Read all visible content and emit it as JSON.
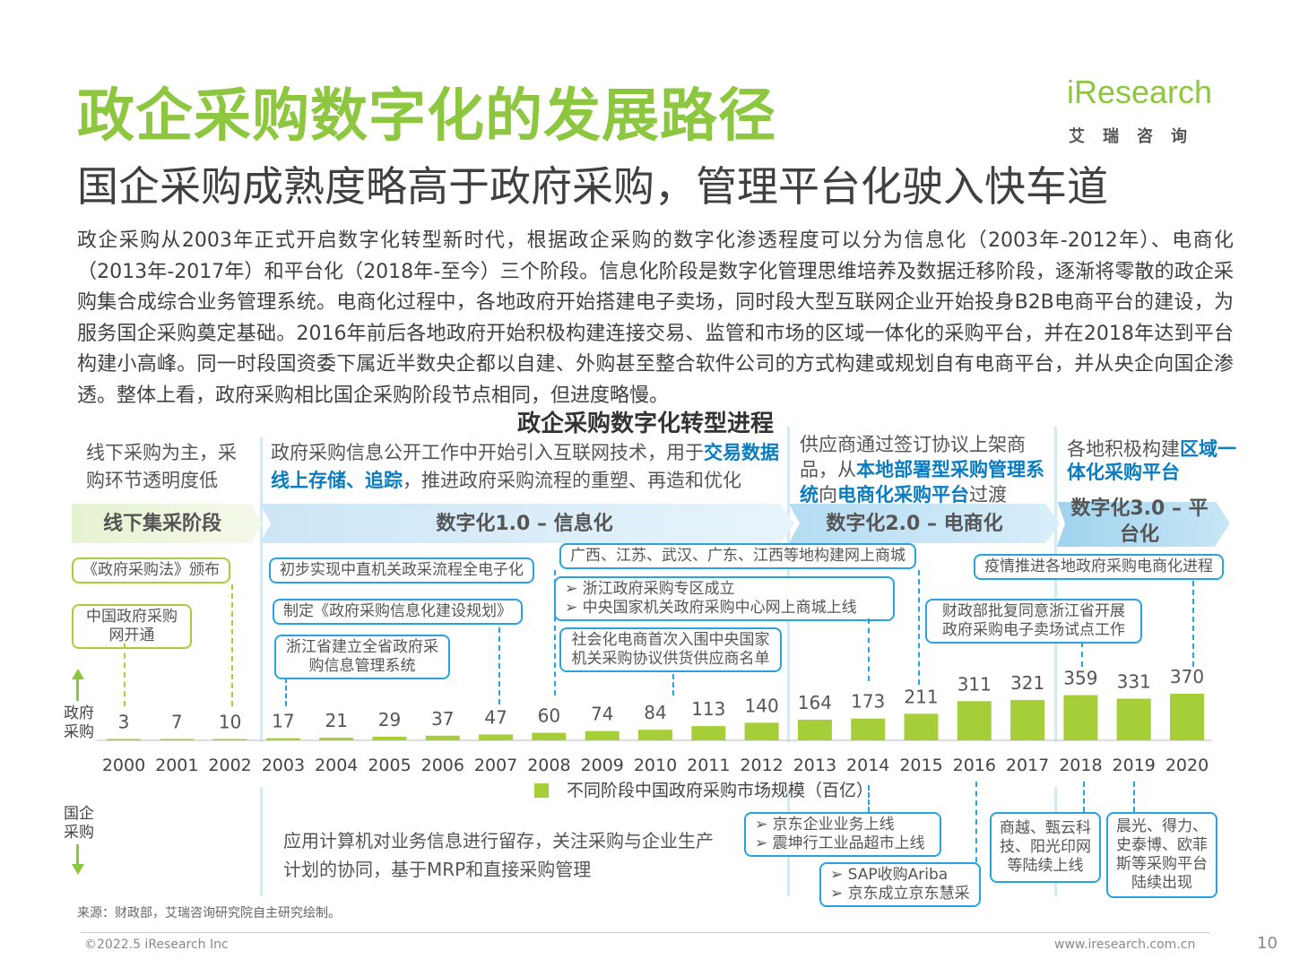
{
  "header": {
    "title": "政企采购数字化的发展路径",
    "subtitle": "国企采购成熟度略高于政府采购，管理平台化驶入快车道",
    "logo_word": "iResearch",
    "logo_cn": "艾瑞咨询"
  },
  "body_text": "政企采购从2003年正式开启数字化转型新时代，根据政企采购的数字化渗透程度可以分为信息化（2003年-2012年）、电商化（2013年-2017年）和平台化（2018年-至今）三个阶段。信息化阶段是数字化管理思维培养及数据迁移阶段，逐渐将零散的政企采购集合成综合业务管理系统。电商化过程中，各地政府开始搭建电子卖场，同时段大型互联网企业开始投身B2B电商平台的建设，为服务国企采购奠定基础。2016年前后各地政府开始积极构建连接交易、监管和市场的区域一体化的采购平台，并在2018年达到平台构建小高峰。同一时段国资委下属近半数央企都以自建、外购甚至整合软件公司的方式构建或规划自有电商平台，并从央企向国企渗透。整体上看，政府采购相比国企采购阶段节点相同，但进度略慢。",
  "chart_title": "政企采购数字化转型进程",
  "stage_desc": {
    "offline": "线下采购为主，采购环节透明度低",
    "d1_pre": "政府采购信息公开工作中开始引入互联网技术，用于",
    "d1_hl": "交易数据线上存储、追踪",
    "d1_post": "，推进政府采购流程的重塑、再造和优化",
    "d2_pre": "供应商通过签订协议上架商品，从",
    "d2_hl1": "本地部署型采购管理系统",
    "d2_mid": "向",
    "d2_hl2": "电商化采购平台",
    "d2_post": "过渡",
    "d3_pre": "各地积极构建",
    "d3_hl": "区域一体化采购平台"
  },
  "stages": {
    "offline": "线下集采阶段",
    "d1": "数字化1.0 – 信息化",
    "d2": "数字化2.0 – 电商化",
    "d3": "数字化3.0 – 平台化"
  },
  "gov_events": {
    "e1": "《政府采购法》颁布",
    "e2": "中国政府采购网开通",
    "e3": "初步实现中直机关政采流程全电子化",
    "e4": "制定《政府采购信息化建设规划》",
    "e5": "浙江省建立全省政府采购信息管理系统",
    "e6": "广西、江苏、武汉、广东、江西等地构建网上商城",
    "e7a": "浙江政府采购专区成立",
    "e7b": "中央国家机关政府采购中心网上商城上线",
    "e8": "社会化电商首次入围中央国家机关采购协议供货供应商名单",
    "e9": "疫情推进各地政府采购电商化进程",
    "e10": "财政部批复同意浙江省开展政府采购电子卖场试点工作"
  },
  "soe_desc": "应用计算机对业务信息进行留存，关注采购与企业生产计划的协同，基于MRP和直接采购管理",
  "soe_events": {
    "s1a": "京东企业业务上线",
    "s1b": "震坤行工业品超市上线",
    "s2a": "SAP收购Ariba",
    "s2b": "京东成立京东慧采",
    "s3": "商越、甄云科技、阳光印网等陆续上线",
    "s4": "晨光、得力、史泰博、欧菲斯等采购平台陆续出现"
  },
  "side_labels": {
    "gov": "政府采购",
    "soe": "国企采购"
  },
  "chart_data": {
    "type": "bar",
    "title": "政企采购数字化转型进程",
    "categories": [
      "2000",
      "2001",
      "2002",
      "2003",
      "2004",
      "2005",
      "2006",
      "2007",
      "2008",
      "2009",
      "2010",
      "2011",
      "2012",
      "2013",
      "2014",
      "2015",
      "2016",
      "2017",
      "2018",
      "2019",
      "2020"
    ],
    "values": [
      3,
      7,
      10,
      17,
      21,
      29,
      37,
      47,
      60,
      74,
      84,
      113,
      140,
      164,
      173,
      211,
      311,
      321,
      359,
      331,
      370
    ],
    "series_name": "不同阶段中国政府采购市场规模（百亿）",
    "legend_position": "bottom",
    "color": "#a6ce39",
    "ylim": [
      0,
      370
    ]
  },
  "footer": {
    "source": "来源：财政部，艾瑞咨询研究院自主研究绘制。",
    "copyright": "©2022.5 iResearch Inc",
    "url": "www.iresearch.com.cn",
    "page": "10"
  }
}
